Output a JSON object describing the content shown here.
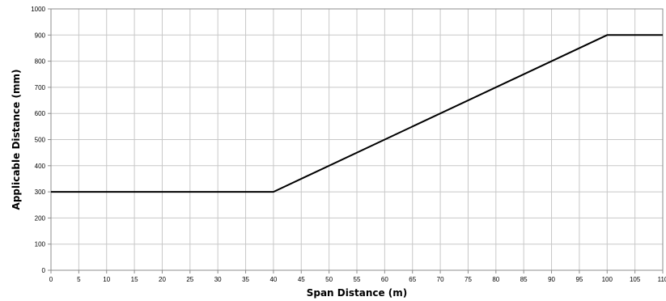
{
  "chart_data": {
    "type": "line",
    "title": "",
    "xlabel": "Span Distance (m)",
    "ylabel": "Applicable Distance (mm)",
    "xlim": [
      0,
      110
    ],
    "ylim": [
      0,
      1000
    ],
    "x_ticks": [
      "0",
      "5",
      "10",
      "15",
      "20",
      "25",
      "30",
      "35",
      "40",
      "45",
      "50",
      "55",
      "60",
      "65",
      "70",
      "75",
      "80",
      "85",
      "90",
      "95",
      "100",
      "105",
      "110"
    ],
    "y_ticks": [
      "0",
      "100",
      "200",
      "300",
      "400",
      "500",
      "600",
      "700",
      "800",
      "900",
      "1000"
    ],
    "grid": true,
    "legend": "none",
    "series": [
      {
        "color": "#000000",
        "x": [
          0,
          40,
          100,
          110
        ],
        "y": [
          300,
          300,
          900,
          900
        ]
      }
    ]
  }
}
